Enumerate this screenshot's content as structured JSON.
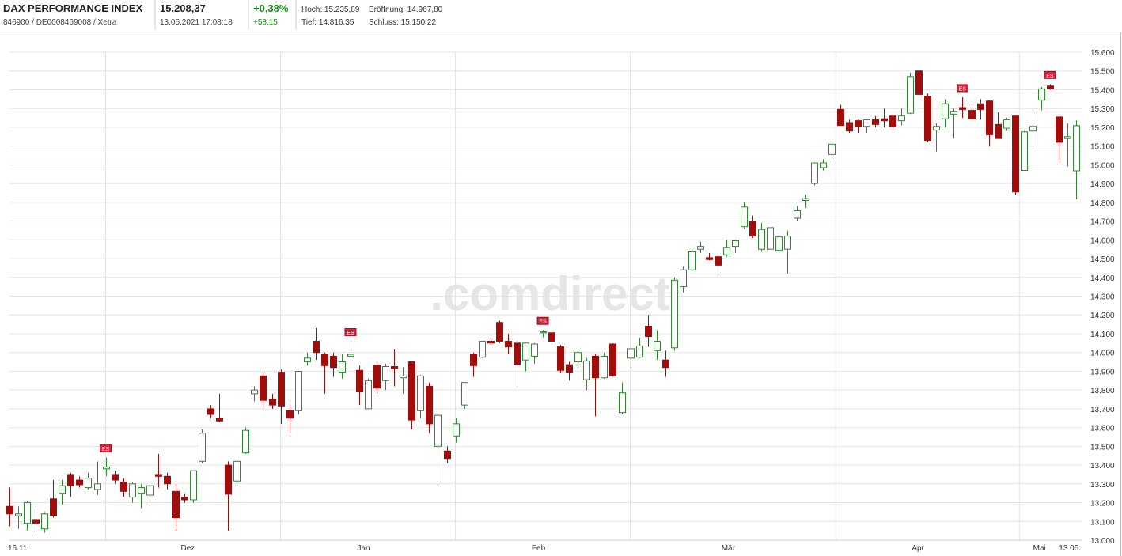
{
  "header": {
    "title": "DAX PERFORMANCE INDEX",
    "subtitle": "846900 / DE0008469008 / Xetra",
    "price": "15.208,37",
    "timestamp": "13.05.2021 17:08:18",
    "change_pct": "+0,38%",
    "change_abs": "+58,15",
    "high": "Hoch: 15.235,89",
    "open": "Eröffnung: 14.967,80",
    "low": "Tief: 14.816,35",
    "close": "Schluss: 15.150,22"
  },
  "chart_data": {
    "type": "candlestick",
    "watermark": ".comdirect",
    "up_color": "#2e8b2e",
    "down_color": "#a00d0d",
    "grid": true,
    "categories": [
      "16.11.",
      null,
      null,
      null,
      null,
      null,
      null,
      null,
      null,
      null,
      null,
      null,
      null,
      null,
      null,
      null,
      null,
      null,
      null,
      null,
      null,
      null,
      null,
      null,
      null,
      null,
      null,
      null,
      null,
      null,
      null,
      null,
      null,
      null,
      null,
      null,
      null,
      null,
      null,
      null,
      null,
      null,
      null,
      null,
      null,
      null,
      null,
      null,
      null,
      null,
      null,
      null,
      null,
      null,
      null,
      null,
      null,
      null,
      null,
      null,
      null,
      null,
      null,
      null,
      null,
      null,
      null,
      null,
      null,
      null,
      null,
      null,
      null,
      null,
      null,
      null,
      null,
      null,
      null,
      null,
      null,
      null,
      null,
      null,
      null,
      null,
      null,
      null,
      null,
      null,
      null,
      null,
      null,
      null,
      null,
      null,
      null,
      null,
      null,
      null,
      null,
      null,
      null,
      null,
      null,
      null,
      null,
      null,
      null,
      null,
      null,
      null,
      null,
      null,
      null,
      null,
      null,
      null,
      null,
      null,
      null,
      null,
      "13.05."
    ],
    "month_labels": [
      {
        "value": 20.4,
        "label": "Dez"
      },
      {
        "value": 40.5,
        "label": "Jan"
      },
      {
        "value": 60.5,
        "label": "Feb"
      },
      {
        "value": 82.2,
        "label": "Mär"
      },
      {
        "value": 103.9,
        "label": "Apr"
      },
      {
        "value": 117.8,
        "label": "Mai"
      }
    ],
    "month_gridlines": [
      11,
      31,
      51,
      71,
      94.5,
      115.5
    ],
    "events": [
      {
        "index": 11,
        "label": "ES"
      },
      {
        "index": 39,
        "label": "ES"
      },
      {
        "index": 61,
        "label": "ES"
      },
      {
        "index": 109,
        "label": "ES"
      },
      {
        "index": 119,
        "label": "ES"
      }
    ],
    "ylim": [
      13000,
      15600
    ],
    "yticks": [
      {
        "value": 13000,
        "label": "13.000"
      },
      {
        "value": 13100,
        "label": "13.100"
      },
      {
        "value": 13200,
        "label": "13.200"
      },
      {
        "value": 13300,
        "label": "13.300"
      },
      {
        "value": 13400,
        "label": "13.400"
      },
      {
        "value": 13500,
        "label": "13.500"
      },
      {
        "value": 13600,
        "label": "13.600"
      },
      {
        "value": 13700,
        "label": "13.700"
      },
      {
        "value": 13800,
        "label": "13.800"
      },
      {
        "value": 13900,
        "label": "13.900"
      },
      {
        "value": 14000,
        "label": "14.000"
      },
      {
        "value": 14100,
        "label": "14.100"
      },
      {
        "value": 14200,
        "label": "14.200"
      },
      {
        "value": 14300,
        "label": "14.300"
      },
      {
        "value": 14400,
        "label": "14.400"
      },
      {
        "value": 14500,
        "label": "14.500"
      },
      {
        "value": 14600,
        "label": "14.600"
      },
      {
        "value": 14700,
        "label": "14.700"
      },
      {
        "value": 14800,
        "label": "14.800"
      },
      {
        "value": 14900,
        "label": "14.900"
      },
      {
        "value": 15000,
        "label": "15.000"
      },
      {
        "value": 15100,
        "label": "15.100"
      },
      {
        "value": 15200,
        "label": "15.200"
      },
      {
        "value": 15300,
        "label": "15.300"
      },
      {
        "value": 15400,
        "label": "15.400"
      },
      {
        "value": 15500,
        "label": "15.500"
      },
      {
        "value": 15600,
        "label": "15.600"
      }
    ],
    "candles": [
      {
        "open": 13180,
        "high": 13280,
        "low": 13075,
        "close": 13140
      },
      {
        "open": 13130,
        "high": 13180,
        "low": 13060,
        "close": 13140
      },
      {
        "open": 13090,
        "high": 13210,
        "low": 13050,
        "close": 13200
      },
      {
        "open": 13110,
        "high": 13170,
        "low": 13040,
        "close": 13090
      },
      {
        "open": 13060,
        "high": 13150,
        "low": 13040,
        "close": 13140
      },
      {
        "open": 13220,
        "high": 13320,
        "low": 13120,
        "close": 13130
      },
      {
        "open": 13250,
        "high": 13320,
        "low": 13190,
        "close": 13290
      },
      {
        "open": 13350,
        "high": 13360,
        "low": 13230,
        "close": 13290
      },
      {
        "open": 13320,
        "high": 13340,
        "low": 13280,
        "close": 13295
      },
      {
        "open": 13280,
        "high": 13360,
        "low": 13270,
        "close": 13330
      },
      {
        "open": 13270,
        "high": 13420,
        "low": 13240,
        "close": 13300
      },
      {
        "open": 13380,
        "high": 13440,
        "low": 13340,
        "close": 13390
      },
      {
        "open": 13350,
        "high": 13370,
        "low": 13300,
        "close": 13320
      },
      {
        "open": 13310,
        "high": 13330,
        "low": 13230,
        "close": 13260
      },
      {
        "open": 13230,
        "high": 13310,
        "low": 13200,
        "close": 13300
      },
      {
        "open": 13250,
        "high": 13300,
        "low": 13170,
        "close": 13280
      },
      {
        "open": 13240,
        "high": 13310,
        "low": 13200,
        "close": 13290
      },
      {
        "open": 13350,
        "high": 13460,
        "low": 13280,
        "close": 13340
      },
      {
        "open": 13340,
        "high": 13360,
        "low": 13270,
        "close": 13300
      },
      {
        "open": 13260,
        "high": 13300,
        "low": 13050,
        "close": 13120
      },
      {
        "open": 13230,
        "high": 13250,
        "low": 13200,
        "close": 13215
      },
      {
        "open": 13215,
        "high": 13370,
        "low": 13200,
        "close": 13370
      },
      {
        "open": 13420,
        "high": 13590,
        "low": 13410,
        "close": 13570
      },
      {
        "open": 13700,
        "high": 13720,
        "low": 13650,
        "close": 13670
      },
      {
        "open": 13650,
        "high": 13780,
        "low": 13630,
        "close": 13635
      },
      {
        "open": 13400,
        "high": 13420,
        "low": 13050,
        "close": 13245
      },
      {
        "open": 13315,
        "high": 13450,
        "low": 13300,
        "close": 13420
      },
      {
        "open": 13465,
        "high": 13600,
        "low": 13460,
        "close": 13585
      },
      {
        "open": 13780,
        "high": 13820,
        "low": 13740,
        "close": 13800
      },
      {
        "open": 13875,
        "high": 13900,
        "low": 13710,
        "close": 13745
      },
      {
        "open": 13750,
        "high": 13780,
        "low": 13700,
        "close": 13720
      },
      {
        "open": 13895,
        "high": 13910,
        "low": 13620,
        "close": 13715
      },
      {
        "open": 13690,
        "high": 13730,
        "low": 13570,
        "close": 13650
      },
      {
        "open": 13690,
        "high": 13900,
        "low": 13670,
        "close": 13900
      },
      {
        "open": 13950,
        "high": 14000,
        "low": 13930,
        "close": 13970
      },
      {
        "open": 14060,
        "high": 14130,
        "low": 13960,
        "close": 14000
      },
      {
        "open": 13990,
        "high": 14000,
        "low": 13780,
        "close": 13930
      },
      {
        "open": 13980,
        "high": 14000,
        "low": 13870,
        "close": 13920
      },
      {
        "open": 13895,
        "high": 13990,
        "low": 13860,
        "close": 13950
      },
      {
        "open": 13980,
        "high": 14060,
        "low": 13970,
        "close": 13990
      },
      {
        "open": 13905,
        "high": 13930,
        "low": 13720,
        "close": 13790
      },
      {
        "open": 13700,
        "high": 13860,
        "low": 13700,
        "close": 13850
      },
      {
        "open": 13930,
        "high": 13950,
        "low": 13780,
        "close": 13810
      },
      {
        "open": 13850,
        "high": 13940,
        "low": 13800,
        "close": 13925
      },
      {
        "open": 13925,
        "high": 14020,
        "low": 13820,
        "close": 13915
      },
      {
        "open": 13865,
        "high": 13920,
        "low": 13780,
        "close": 13875
      },
      {
        "open": 13950,
        "high": 13950,
        "low": 13590,
        "close": 13640
      },
      {
        "open": 13690,
        "high": 13880,
        "low": 13650,
        "close": 13875
      },
      {
        "open": 13820,
        "high": 13840,
        "low": 13570,
        "close": 13620
      },
      {
        "open": 13500,
        "high": 13680,
        "low": 13310,
        "close": 13665
      },
      {
        "open": 13475,
        "high": 13500,
        "low": 13410,
        "close": 13435
      },
      {
        "open": 13555,
        "high": 13650,
        "low": 13520,
        "close": 13620
      },
      {
        "open": 13720,
        "high": 13840,
        "low": 13700,
        "close": 13840
      },
      {
        "open": 13990,
        "high": 14000,
        "low": 13870,
        "close": 13930
      },
      {
        "open": 13975,
        "high": 14060,
        "low": 13970,
        "close": 14060
      },
      {
        "open": 14060,
        "high": 14080,
        "low": 14040,
        "close": 14050
      },
      {
        "open": 14160,
        "high": 14170,
        "low": 14050,
        "close": 14060
      },
      {
        "open": 14060,
        "high": 14100,
        "low": 13990,
        "close": 14030
      },
      {
        "open": 14050,
        "high": 14060,
        "low": 13820,
        "close": 13935
      },
      {
        "open": 13960,
        "high": 14050,
        "low": 13900,
        "close": 14050
      },
      {
        "open": 13980,
        "high": 14050,
        "low": 13940,
        "close": 14045
      },
      {
        "open": 14105,
        "high": 14120,
        "low": 14080,
        "close": 14110
      },
      {
        "open": 14105,
        "high": 14120,
        "low": 14040,
        "close": 14060
      },
      {
        "open": 14030,
        "high": 14040,
        "low": 13890,
        "close": 13905
      },
      {
        "open": 13935,
        "high": 13950,
        "low": 13850,
        "close": 13895
      },
      {
        "open": 13950,
        "high": 14020,
        "low": 13920,
        "close": 14000
      },
      {
        "open": 13855,
        "high": 13970,
        "low": 13800,
        "close": 13955
      },
      {
        "open": 13980,
        "high": 13990,
        "low": 13660,
        "close": 13865
      },
      {
        "open": 13865,
        "high": 14000,
        "low": 13860,
        "close": 13980
      },
      {
        "open": 14045,
        "high": 14050,
        "low": 13870,
        "close": 13875
      },
      {
        "open": 13680,
        "high": 13840,
        "low": 13670,
        "close": 13785
      },
      {
        "open": 13970,
        "high": 14020,
        "low": 13900,
        "close": 14020
      },
      {
        "open": 13975,
        "high": 14080,
        "low": 13970,
        "close": 14035
      },
      {
        "open": 14140,
        "high": 14200,
        "low": 14030,
        "close": 14085
      },
      {
        "open": 14010,
        "high": 14120,
        "low": 13960,
        "close": 14060
      },
      {
        "open": 13960,
        "high": 14010,
        "low": 13870,
        "close": 13920
      },
      {
        "open": 14025,
        "high": 14400,
        "low": 14010,
        "close": 14385
      },
      {
        "open": 14350,
        "high": 14460,
        "low": 14320,
        "close": 14440
      },
      {
        "open": 14440,
        "high": 14560,
        "low": 14430,
        "close": 14540
      },
      {
        "open": 14550,
        "high": 14590,
        "low": 14530,
        "close": 14565
      },
      {
        "open": 14505,
        "high": 14530,
        "low": 14490,
        "close": 14495
      },
      {
        "open": 14510,
        "high": 14530,
        "low": 14410,
        "close": 14465
      },
      {
        "open": 14520,
        "high": 14600,
        "low": 14510,
        "close": 14560
      },
      {
        "open": 14565,
        "high": 14600,
        "low": 14530,
        "close": 14595
      },
      {
        "open": 14670,
        "high": 14800,
        "low": 14660,
        "close": 14775
      },
      {
        "open": 14700,
        "high": 14730,
        "low": 14610,
        "close": 14620
      },
      {
        "open": 14550,
        "high": 14690,
        "low": 14540,
        "close": 14655
      },
      {
        "open": 14550,
        "high": 14660,
        "low": 14550,
        "close": 14665
      },
      {
        "open": 14545,
        "high": 14620,
        "low": 14530,
        "close": 14615
      },
      {
        "open": 14550,
        "high": 14650,
        "low": 14420,
        "close": 14620
      },
      {
        "open": 14715,
        "high": 14780,
        "low": 14700,
        "close": 14755
      },
      {
        "open": 14810,
        "high": 14840,
        "low": 14770,
        "close": 14820
      },
      {
        "open": 14900,
        "high": 15010,
        "low": 14890,
        "close": 15010
      },
      {
        "open": 14985,
        "high": 15030,
        "low": 14970,
        "close": 15010
      },
      {
        "open": 15055,
        "high": 15110,
        "low": 15030,
        "close": 15110
      },
      {
        "open": 15295,
        "high": 15320,
        "low": 15210,
        "close": 15210
      },
      {
        "open": 15225,
        "high": 15240,
        "low": 15170,
        "close": 15180
      },
      {
        "open": 15235,
        "high": 15240,
        "low": 15170,
        "close": 15205
      },
      {
        "open": 15205,
        "high": 15240,
        "low": 15170,
        "close": 15240
      },
      {
        "open": 15240,
        "high": 15260,
        "low": 15200,
        "close": 15215
      },
      {
        "open": 15245,
        "high": 15300,
        "low": 15200,
        "close": 15235
      },
      {
        "open": 15260,
        "high": 15270,
        "low": 15180,
        "close": 15205
      },
      {
        "open": 15235,
        "high": 15300,
        "low": 15210,
        "close": 15260
      },
      {
        "open": 15275,
        "high": 15490,
        "low": 15270,
        "close": 15470
      },
      {
        "open": 15500,
        "high": 15500,
        "low": 15355,
        "close": 15375
      },
      {
        "open": 15365,
        "high": 15380,
        "low": 15120,
        "close": 15130
      },
      {
        "open": 15185,
        "high": 15220,
        "low": 15070,
        "close": 15205
      },
      {
        "open": 15245,
        "high": 15350,
        "low": 15200,
        "close": 15325
      },
      {
        "open": 15270,
        "high": 15300,
        "low": 15140,
        "close": 15285
      },
      {
        "open": 15305,
        "high": 15360,
        "low": 15250,
        "close": 15295
      },
      {
        "open": 15290,
        "high": 15310,
        "low": 15250,
        "close": 15245
      },
      {
        "open": 15325,
        "high": 15350,
        "low": 15240,
        "close": 15295
      },
      {
        "open": 15340,
        "high": 15340,
        "low": 15100,
        "close": 15160
      },
      {
        "open": 15215,
        "high": 15280,
        "low": 15140,
        "close": 15140
      },
      {
        "open": 15195,
        "high": 15250,
        "low": 15180,
        "close": 15240
      },
      {
        "open": 15260,
        "high": 15260,
        "low": 14840,
        "close": 14855
      },
      {
        "open": 14970,
        "high": 15180,
        "low": 14970,
        "close": 15175
      },
      {
        "open": 15180,
        "high": 15280,
        "low": 15100,
        "close": 15205
      },
      {
        "open": 15345,
        "high": 15415,
        "low": 15290,
        "close": 15405
      },
      {
        "open": 15420,
        "high": 15430,
        "low": 15400,
        "close": 15405
      },
      {
        "open": 15255,
        "high": 15260,
        "low": 15010,
        "close": 15120
      },
      {
        "open": 15140,
        "high": 15220,
        "low": 14990,
        "close": 15150
      },
      {
        "open": 14967.8,
        "high": 15235.89,
        "low": 14816.35,
        "close": 15208.37
      }
    ]
  }
}
